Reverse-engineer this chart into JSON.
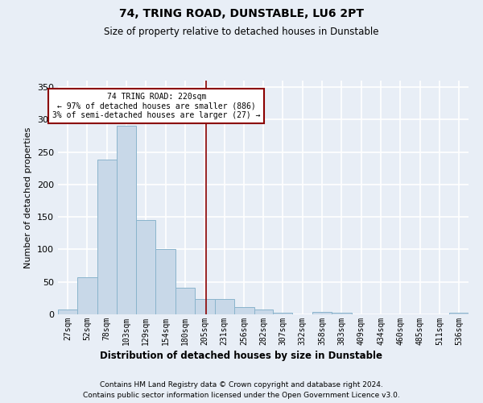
{
  "title": "74, TRING ROAD, DUNSTABLE, LU6 2PT",
  "subtitle": "Size of property relative to detached houses in Dunstable",
  "xlabel": "Distribution of detached houses by size in Dunstable",
  "ylabel": "Number of detached properties",
  "bin_labels": [
    "27sqm",
    "52sqm",
    "78sqm",
    "103sqm",
    "129sqm",
    "154sqm",
    "180sqm",
    "205sqm",
    "231sqm",
    "256sqm",
    "282sqm",
    "307sqm",
    "332sqm",
    "358sqm",
    "383sqm",
    "409sqm",
    "434sqm",
    "460sqm",
    "485sqm",
    "511sqm",
    "536sqm"
  ],
  "bin_edges": [
    27,
    52,
    78,
    103,
    129,
    154,
    180,
    205,
    231,
    256,
    282,
    307,
    332,
    358,
    383,
    409,
    434,
    460,
    485,
    511,
    536,
    561
  ],
  "bar_heights": [
    8,
    57,
    238,
    291,
    145,
    100,
    41,
    24,
    24,
    11,
    7,
    3,
    0,
    4,
    3,
    0,
    0,
    0,
    0,
    0,
    3
  ],
  "bar_color": "#c8d8e8",
  "bar_edgecolor": "#8ab4cc",
  "bg_color": "#e8eef6",
  "grid_color": "#ffffff",
  "vline_x": 220,
  "vline_color": "#8b0000",
  "annotation_text": "74 TRING ROAD: 220sqm\n← 97% of detached houses are smaller (886)\n3% of semi-detached houses are larger (27) →",
  "annotation_box_color": "#ffffff",
  "annotation_box_edgecolor": "#8b0000",
  "ylim": [
    0,
    360
  ],
  "yticks": [
    0,
    50,
    100,
    150,
    200,
    250,
    300,
    350
  ],
  "footer1": "Contains HM Land Registry data © Crown copyright and database right 2024.",
  "footer2": "Contains public sector information licensed under the Open Government Licence v3.0."
}
